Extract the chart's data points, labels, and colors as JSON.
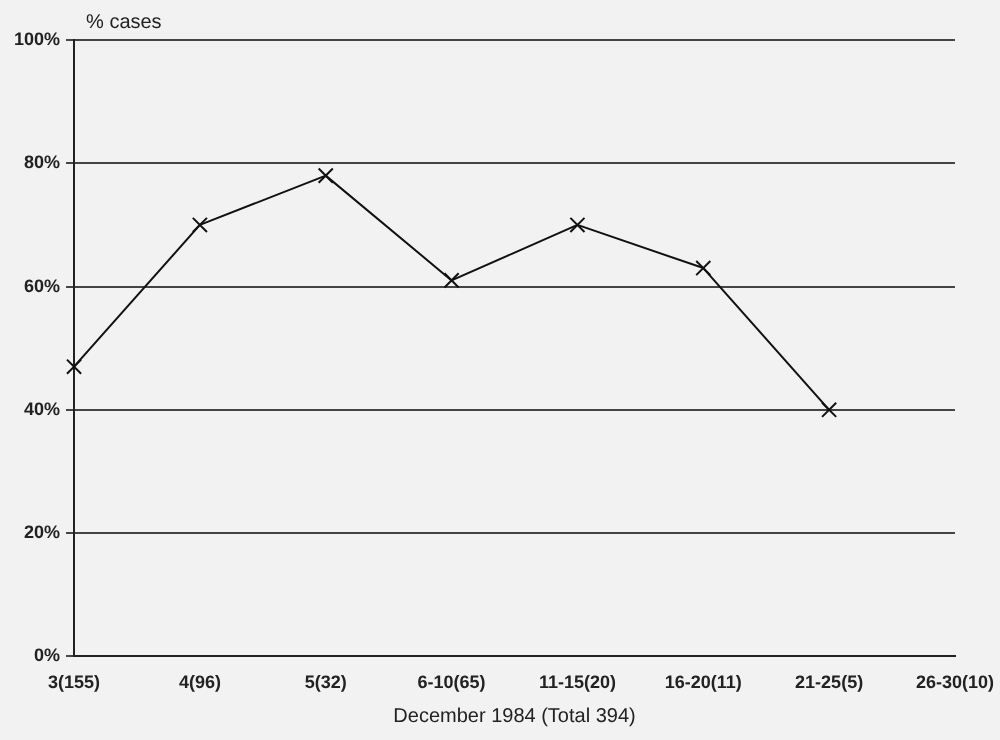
{
  "chart_data": {
    "type": "line",
    "xlabel": "December 1984 (Total 394)",
    "ylabel": "% cases",
    "categories": [
      "3(155)",
      "4(96)",
      "5(32)",
      "6-10(65)",
      "11-15(20)",
      "16-20(11)",
      "21-25(5)",
      "26-30(10)"
    ],
    "series": [
      {
        "color": "#111111",
        "values": [
          47,
          70,
          78,
          61,
          70,
          63,
          40,
          null
        ]
      }
    ],
    "ylim": [
      0,
      100
    ],
    "yticks": [
      {
        "value": 0,
        "label": "0%"
      },
      {
        "value": 20,
        "label": "20%"
      },
      {
        "value": 40,
        "label": "40%"
      },
      {
        "value": 60,
        "label": "60%"
      },
      {
        "value": 80,
        "label": "80%"
      },
      {
        "value": 100,
        "label": "100%"
      }
    ],
    "grid": "y",
    "legend": false,
    "marker": "cross",
    "line_style": "solid"
  }
}
